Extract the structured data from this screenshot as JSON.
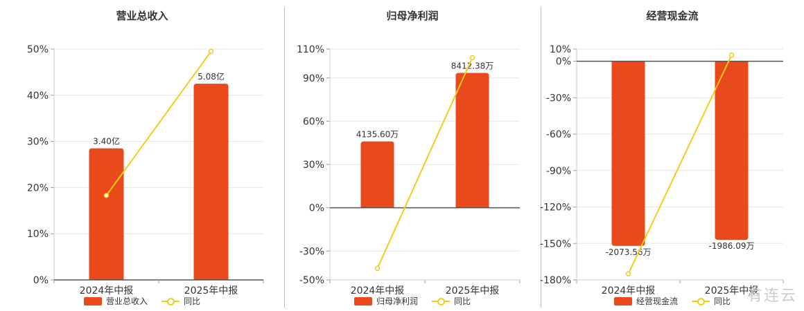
{
  "chart_data": [
    {
      "type": "bar",
      "title": "营业总收入",
      "categories": [
        "2024年中报",
        "2025年中报"
      ],
      "bar_series": {
        "name": "营业总收入",
        "values": [
          28.5,
          42.5
        ],
        "labels": [
          "3.40亿",
          "5.08亿"
        ]
      },
      "line_series": {
        "name": "同比",
        "values": [
          18.3,
          49.5
        ]
      },
      "yticks": [
        "50%",
        "40%",
        "30%",
        "20%",
        "10%",
        "0%"
      ],
      "ytick_values": [
        50,
        40,
        30,
        20,
        10,
        0
      ],
      "ylim": [
        0,
        50
      ],
      "grid": true,
      "legend": "bottom"
    },
    {
      "type": "bar",
      "title": "归母净利润",
      "categories": [
        "2024年中报",
        "2025年中报"
      ],
      "bar_series": {
        "name": "归母净利润",
        "values": [
          46,
          93.5
        ],
        "labels": [
          "4135.60万",
          "8412.38万"
        ]
      },
      "line_series": {
        "name": "同比",
        "values": [
          -42,
          104
        ]
      },
      "yticks": [
        "110%",
        "90%",
        "60%",
        "30%",
        "0%",
        "-30%",
        "-50%"
      ],
      "ytick_values": [
        110,
        90,
        60,
        30,
        0,
        -30,
        -50
      ],
      "ylim": [
        -50,
        110
      ],
      "grid": true,
      "legend": "bottom"
    },
    {
      "type": "bar",
      "title": "经营现金流",
      "categories": [
        "2024年中报",
        "2025年中报"
      ],
      "bar_series": {
        "name": "经营现金流",
        "values": [
          -152,
          -147
        ],
        "labels": [
          "-2073.56万",
          "-1986.09万"
        ]
      },
      "line_series": {
        "name": "同比",
        "values": [
          -175,
          5
        ]
      },
      "yticks": [
        "10%",
        "0%",
        "-30%",
        "-60%",
        "-90%",
        "-120%",
        "-150%",
        "-180%"
      ],
      "ytick_values": [
        10,
        0,
        -30,
        -60,
        -90,
        -120,
        -150,
        -180
      ],
      "ylim": [
        -180,
        10
      ],
      "grid": true,
      "legend": "bottom"
    }
  ],
  "colors": {
    "bar": "#E84A1B",
    "line": "#F5CB1A",
    "grid": "#e6e6e6",
    "axis": "#555555"
  },
  "watermark": "有连云"
}
